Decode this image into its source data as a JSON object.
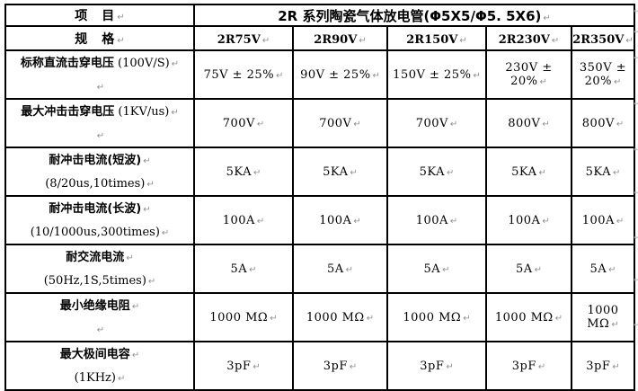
{
  "glyphs": {
    "line_break_mark": "↵"
  },
  "colors": {
    "border": "#000000",
    "text": "#000000",
    "mark": "#8f8f8f",
    "background": "#ffffff"
  },
  "header": {
    "item_label": "项　目",
    "spec_label": "规　格",
    "series_title": "2R 系列陶瓷气体放电管(Φ5X5/Φ5. 5X6)",
    "models": [
      "2R75V",
      "2R90V",
      "2R150V",
      "2R230V",
      "2R350V"
    ]
  },
  "rows": [
    {
      "label1": "标称直流击穿电压",
      "label1_suffix": " (100V/S)",
      "label2": "",
      "values": [
        "75V ± 25%",
        "90V ± 25%",
        "150V ± 25%",
        "230V ± 20%",
        "350V ± 20%"
      ]
    },
    {
      "label1": "最大冲击击穿电压",
      "label1_suffix": " (1KV/us)",
      "label2": "",
      "values": [
        "700V",
        "700V",
        "700V",
        "800V",
        "800V"
      ]
    },
    {
      "label1": "耐冲击电流(短波)",
      "label1_suffix": "",
      "label2": "(8/20us,10times)",
      "values": [
        "5KA",
        "5KA",
        "5KA",
        "5KA",
        "5KA"
      ]
    },
    {
      "label1": "耐冲击电流(长波)",
      "label1_suffix": "",
      "label2": "(10/1000us,300times)",
      "values": [
        "100A",
        "100A",
        "100A",
        "100A",
        "100A"
      ]
    },
    {
      "label1": "耐交流电流",
      "label1_suffix": "",
      "label2": "(50Hz,1S,5times)",
      "values": [
        "5A",
        "5A",
        "5A",
        "5A",
        "5A"
      ]
    },
    {
      "label1": "最小绝缘电阻",
      "label1_suffix": "",
      "label2": "",
      "values": [
        "1000 MΩ",
        "1000 MΩ",
        "1000 MΩ",
        "1000 MΩ",
        "1000 MΩ"
      ]
    },
    {
      "label1": "最大极间电容",
      "label1_suffix": "",
      "label2": "(1KHz)",
      "values": [
        "3pF",
        "3pF",
        "3pF",
        "3pF",
        "3pF"
      ]
    }
  ]
}
